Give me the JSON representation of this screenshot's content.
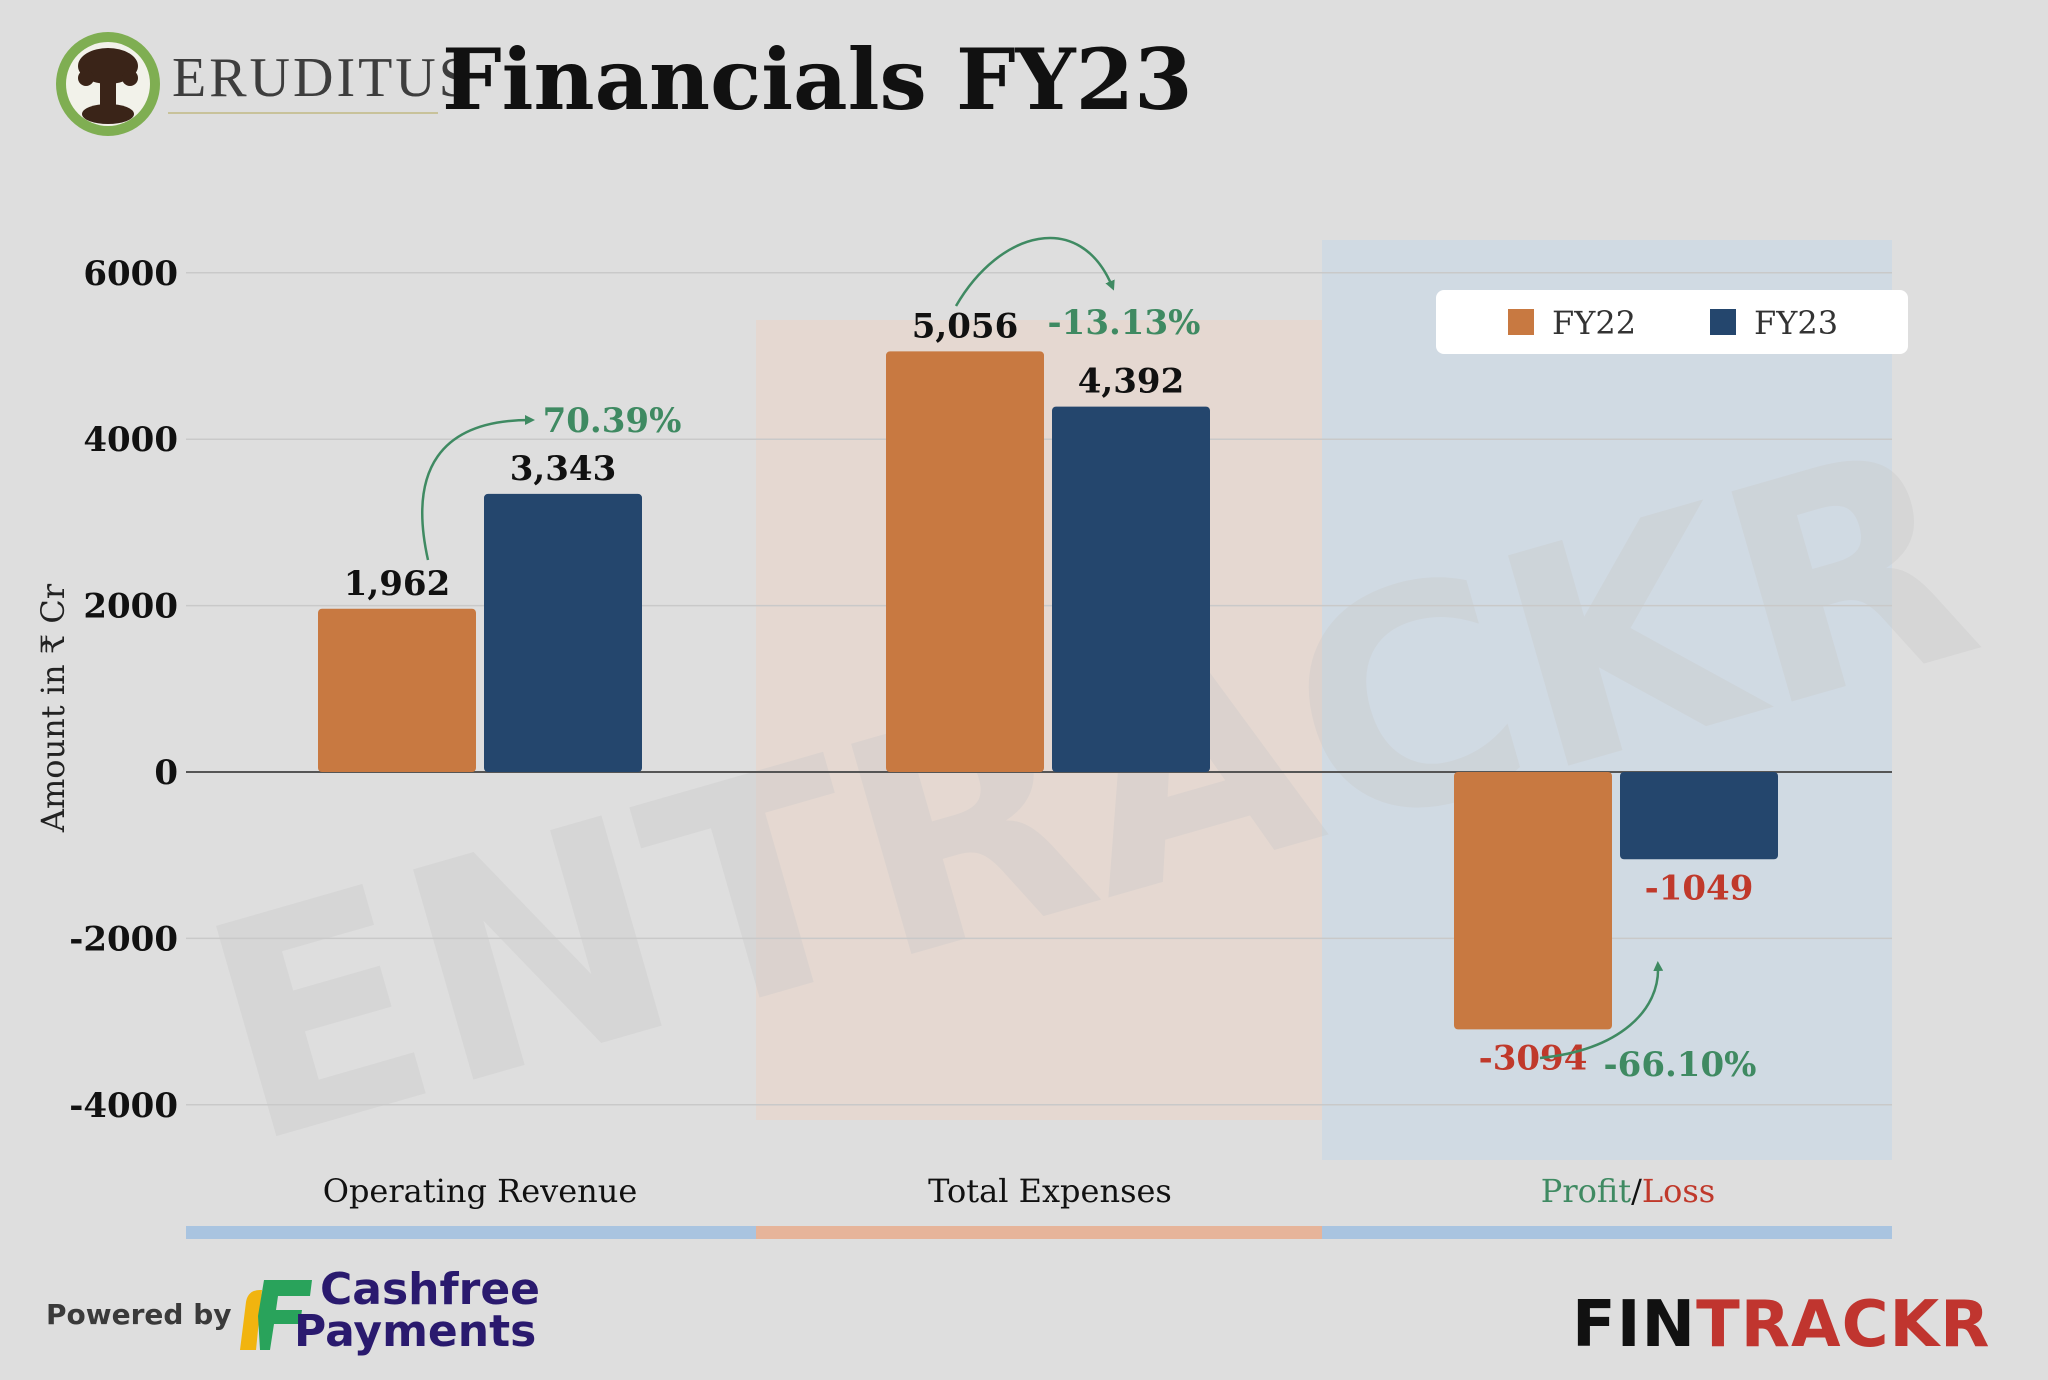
{
  "header": {
    "logo_text": "ERUDITUS",
    "title": "Financials FY23"
  },
  "footer": {
    "powered_by": "Powered by",
    "sponsor_line1": "Cashfree",
    "sponsor_line2": "Payments",
    "brand_part1": "FIN",
    "brand_part2": "TRACKR"
  },
  "watermark": "ENTRACKR",
  "colors": {
    "fy22": "#c87941",
    "fy23": "#24466d",
    "growth": "#3f8a62",
    "loss": "#c0392b",
    "band_blue": "#a9c4e0",
    "band_peach": "#e6b49a"
  },
  "chart_data": {
    "type": "bar",
    "ylabel": "Amount in ₹ Cr",
    "ylim": [
      -4000,
      6000
    ],
    "yticks": [
      6000,
      4000,
      2000,
      0,
      -2000,
      -4000
    ],
    "grid": true,
    "legend_position": "top-right",
    "categories": [
      "Operating Revenue",
      "Total Expenses",
      "Profit/Loss"
    ],
    "category_parts": [
      "Profit",
      "/",
      "Loss"
    ],
    "series": [
      {
        "name": "FY22",
        "values": [
          1962,
          5056,
          -3094
        ],
        "labels": [
          "1,962",
          "5,056",
          "-3094"
        ]
      },
      {
        "name": "FY23",
        "values": [
          3343,
          4392,
          -1049
        ],
        "labels": [
          "3,343",
          "4,392",
          "-1049"
        ]
      }
    ],
    "changes": [
      "70.39%",
      "-13.13%",
      "-66.10%"
    ]
  }
}
